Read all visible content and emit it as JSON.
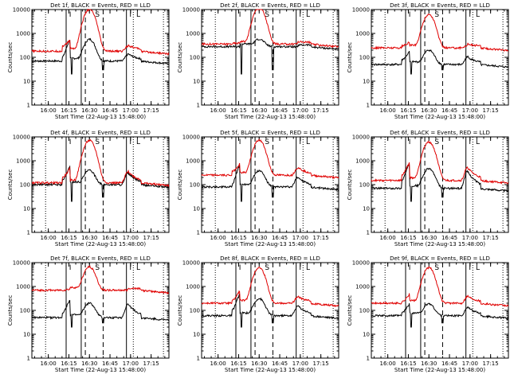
{
  "chart_data": [
    {
      "type": "line",
      "title": "Det 1f, BLACK = Events, RED = LLD",
      "xlabel": "Start Time (22-Aug-13 15:48:00)",
      "ylabel": "Counts/sec",
      "yscale": "log",
      "ylim": [
        1,
        10000
      ],
      "x_ticks": [
        "16:00",
        "16:15",
        "16:30",
        "16:45",
        "17:00",
        "17:15"
      ],
      "y_ticks": [
        "1",
        "10",
        "100",
        "1000",
        "10000"
      ],
      "series": [
        {
          "name": "BLACK",
          "profile": {
            "base": 70,
            "pre": [
              100,
              600
            ],
            "peak": 500,
            "flare2": 130
          }
        },
        {
          "name": "RED",
          "profile": {
            "base": 180,
            "pre": [
              300,
              550
            ],
            "peak": 10000,
            "flare2": 300
          }
        }
      ],
      "region_labels": [
        "I",
        "S",
        "I",
        "L"
      ]
    },
    {
      "type": "line",
      "title": "Det 2f, BLACK = Events, RED = LLD",
      "xlabel": "Start Time (22-Aug-13 15:48:00)",
      "ylabel": "Counts/sec",
      "yscale": "log",
      "ylim": [
        1,
        10000
      ],
      "x_ticks": [
        "16:00",
        "16:15",
        "16:30",
        "16:45",
        "17:00",
        "17:15"
      ],
      "y_ticks": [
        "1",
        "10",
        "100",
        "1000",
        "10000"
      ],
      "series": [
        {
          "name": "BLACK",
          "profile": {
            "base": 280,
            "pre": [
              280,
              280
            ],
            "peak": 300,
            "flare2": 260
          }
        },
        {
          "name": "RED",
          "profile": {
            "base": 360,
            "pre": [
              380,
              400
            ],
            "peak": 12000,
            "flare2": 380
          }
        }
      ],
      "region_labels": [
        "I",
        "S",
        "I",
        "L"
      ]
    },
    {
      "type": "line",
      "title": "Det 3f, BLACK = Events, RED = LLD",
      "xlabel": "Start Time (22-Aug-13 15:48:00)",
      "ylabel": "Counts/sec",
      "yscale": "log",
      "ylim": [
        1,
        10000
      ],
      "x_ticks": [
        "16:00",
        "16:15",
        "16:30",
        "16:45",
        "17:00",
        "17:15"
      ],
      "y_ticks": [
        "1",
        "10",
        "100",
        "1000",
        "10000"
      ],
      "series": [
        {
          "name": "BLACK",
          "profile": {
            "base": 50,
            "pre": [
              80,
              180
            ],
            "peak": 150,
            "flare2": 100
          }
        },
        {
          "name": "RED",
          "profile": {
            "base": 250,
            "pre": [
              300,
              450
            ],
            "peak": 6000,
            "flare2": 320
          }
        }
      ],
      "region_labels": [
        "I",
        "S",
        "I",
        "L"
      ]
    },
    {
      "type": "line",
      "title": "Det 4f, BLACK = Events, RED = LLD",
      "xlabel": "Start Time (22-Aug-13 15:48:00)",
      "ylabel": "Counts/sec",
      "yscale": "log",
      "ylim": [
        1,
        10000
      ],
      "x_ticks": [
        "16:00",
        "16:15",
        "16:30",
        "16:45",
        "17:00",
        "17:15"
      ],
      "y_ticks": [
        "1",
        "10",
        "100",
        "1000",
        "10000"
      ],
      "series": [
        {
          "name": "BLACK",
          "profile": {
            "base": 100,
            "pre": [
              150,
              600
            ],
            "peak": 300,
            "flare2": 300
          }
        },
        {
          "name": "RED",
          "profile": {
            "base": 120,
            "pre": [
              200,
              500
            ],
            "peak": 7000,
            "flare2": 350
          }
        }
      ],
      "region_labels": [
        "I",
        "S",
        "I",
        "L"
      ]
    },
    {
      "type": "line",
      "title": "Det 5f, BLACK = Events, RED = LLD",
      "xlabel": "Start Time (22-Aug-13 15:48:00)",
      "ylabel": "Counts/sec",
      "yscale": "log",
      "ylim": [
        1,
        10000
      ],
      "x_ticks": [
        "16:00",
        "16:15",
        "16:30",
        "16:45",
        "17:00",
        "17:15"
      ],
      "y_ticks": [
        "1",
        "10",
        "100",
        "1000",
        "10000"
      ],
      "series": [
        {
          "name": "BLACK",
          "profile": {
            "base": 80,
            "pre": [
              100,
              700
            ],
            "peak": 300,
            "flare2": 200
          }
        },
        {
          "name": "RED",
          "profile": {
            "base": 250,
            "pre": [
              350,
              800
            ],
            "peak": 7000,
            "flare2": 500
          }
        }
      ],
      "region_labels": [
        "I",
        "S",
        "I",
        "L"
      ]
    },
    {
      "type": "line",
      "title": "Det 6f, BLACK = Events, RED = LLD",
      "xlabel": "Start Time (22-Aug-13 15:48:00)",
      "ylabel": "Counts/sec",
      "yscale": "log",
      "ylim": [
        1,
        10000
      ],
      "x_ticks": [
        "16:00",
        "16:15",
        "16:30",
        "16:45",
        "17:00",
        "17:15"
      ],
      "y_ticks": [
        "1",
        "10",
        "100",
        "1000",
        "10000"
      ],
      "series": [
        {
          "name": "BLACK",
          "profile": {
            "base": 70,
            "pre": [
              150,
              800
            ],
            "peak": 400,
            "flare2": 350
          }
        },
        {
          "name": "RED",
          "profile": {
            "base": 150,
            "pre": [
              250,
              900
            ],
            "peak": 6000,
            "flare2": 500
          }
        }
      ],
      "region_labels": [
        "I",
        "S",
        "I",
        "L"
      ]
    },
    {
      "type": "line",
      "title": "Det 7f, BLACK = Events, RED = LLD",
      "xlabel": "Start Time (22-Aug-13 15:48:00)",
      "ylabel": "Counts/sec",
      "yscale": "log",
      "ylim": [
        1,
        10000
      ],
      "x_ticks": [
        "16:00",
        "16:15",
        "16:30",
        "16:45",
        "17:00",
        "17:15"
      ],
      "y_ticks": [
        "1",
        "10",
        "100",
        "1000",
        "10000"
      ],
      "series": [
        {
          "name": "BLACK",
          "profile": {
            "base": 50,
            "pre": [
              80,
              300
            ],
            "peak": 150,
            "flare2": 180
          }
        },
        {
          "name": "RED",
          "profile": {
            "base": 700,
            "pre": [
              700,
              800
            ],
            "peak": 6000,
            "flare2": 700
          }
        }
      ],
      "region_labels": [
        "I",
        "S",
        "I",
        "L"
      ]
    },
    {
      "type": "line",
      "title": "Det 8f, BLACK = Events, RED = LLD",
      "xlabel": "Start Time (22-Aug-13 15:48:00)",
      "ylabel": "Counts/sec",
      "yscale": "log",
      "ylim": [
        1,
        10000
      ],
      "x_ticks": [
        "16:00",
        "16:15",
        "16:30",
        "16:45",
        "17:00",
        "17:15"
      ],
      "y_ticks": [
        "1",
        "10",
        "100",
        "1000",
        "10000"
      ],
      "series": [
        {
          "name": "BLACK",
          "profile": {
            "base": 60,
            "pre": [
              100,
              500
            ],
            "peak": 250,
            "flare2": 150
          }
        },
        {
          "name": "RED",
          "profile": {
            "base": 200,
            "pre": [
              250,
              700
            ],
            "peak": 6000,
            "flare2": 350
          }
        }
      ],
      "region_labels": [
        "I",
        "S",
        "I",
        "L"
      ]
    },
    {
      "type": "line",
      "title": "Det 9f, BLACK = Events, RED = LLD",
      "xlabel": "Start Time (22-Aug-13 15:48:00)",
      "ylabel": "Counts/sec",
      "yscale": "log",
      "ylim": [
        1,
        10000
      ],
      "x_ticks": [
        "16:00",
        "16:15",
        "16:30",
        "16:45",
        "17:00",
        "17:15"
      ],
      "y_ticks": [
        "1",
        "10",
        "100",
        "1000",
        "10000"
      ],
      "series": [
        {
          "name": "BLACK",
          "profile": {
            "base": 60,
            "pre": [
              80,
              200
            ],
            "peak": 130,
            "flare2": 130
          }
        },
        {
          "name": "RED",
          "profile": {
            "base": 200,
            "pre": [
              230,
              500
            ],
            "peak": 6000,
            "flare2": 380
          }
        }
      ],
      "region_labels": [
        "I",
        "S",
        "I",
        "L"
      ]
    }
  ],
  "colors": {
    "black_series": "#000000",
    "red_series": "#e00000",
    "background": "#ffffff"
  },
  "time_axis": {
    "start": "15:48",
    "end": "17:28"
  },
  "markers": {
    "solid": [
      "16:13",
      "16:24",
      "16:57"
    ],
    "dashed": [
      "16:27",
      "16:40"
    ],
    "dotted": [
      "17:02",
      "17:24"
    ]
  }
}
